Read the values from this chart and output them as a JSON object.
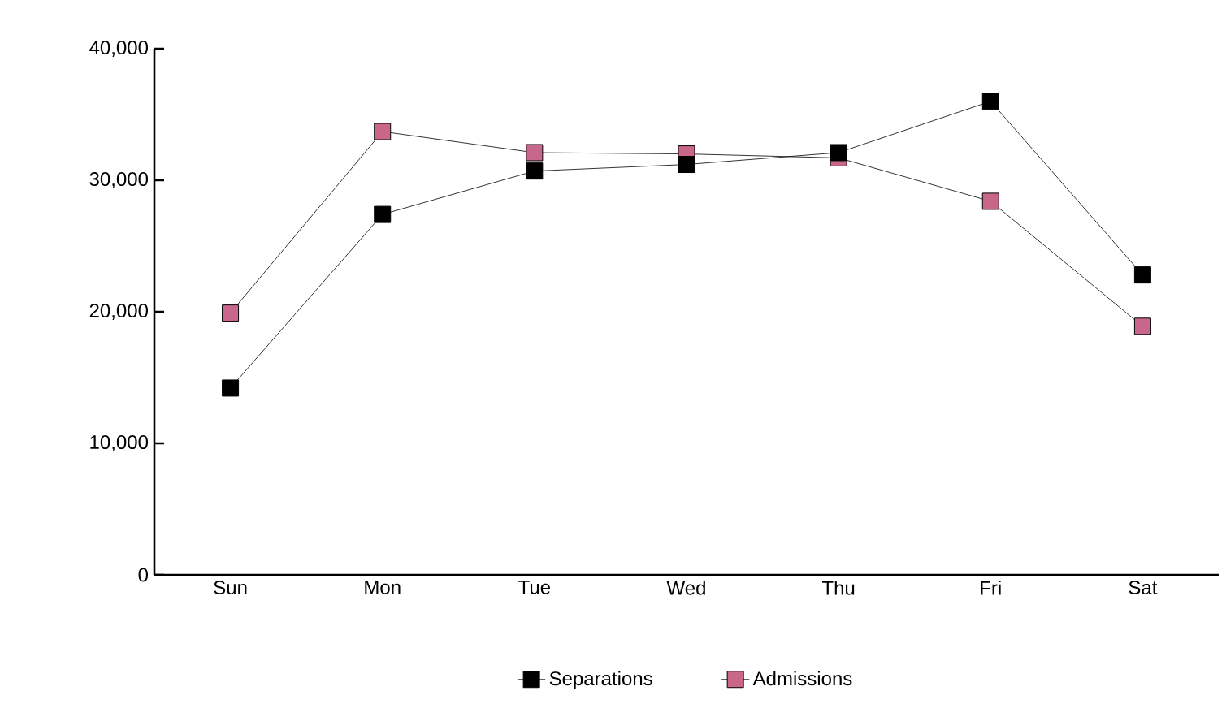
{
  "chart_data": {
    "type": "line",
    "categories": [
      "Sun",
      "Mon",
      "Tue",
      "Wed",
      "Thu",
      "Fri",
      "Sat"
    ],
    "series": [
      {
        "name": "Separations",
        "color": "#000000",
        "values": [
          14200,
          27400,
          30700,
          31200,
          32100,
          36000,
          22800
        ]
      },
      {
        "name": "Admissions",
        "color": "#c8678a",
        "values": [
          19900,
          33700,
          32100,
          32000,
          31700,
          28400,
          18900
        ]
      }
    ],
    "ylim": [
      0,
      40000
    ],
    "yticks": [
      {
        "value": 0,
        "label": "0"
      },
      {
        "value": 10000,
        "label": "10,000"
      },
      {
        "value": 20000,
        "label": "20,000"
      },
      {
        "value": 30000,
        "label": "30,000"
      },
      {
        "value": 40000,
        "label": "40,000"
      }
    ],
    "grid": false,
    "legend": "bottom",
    "marker": "square",
    "line_style": "solid"
  }
}
